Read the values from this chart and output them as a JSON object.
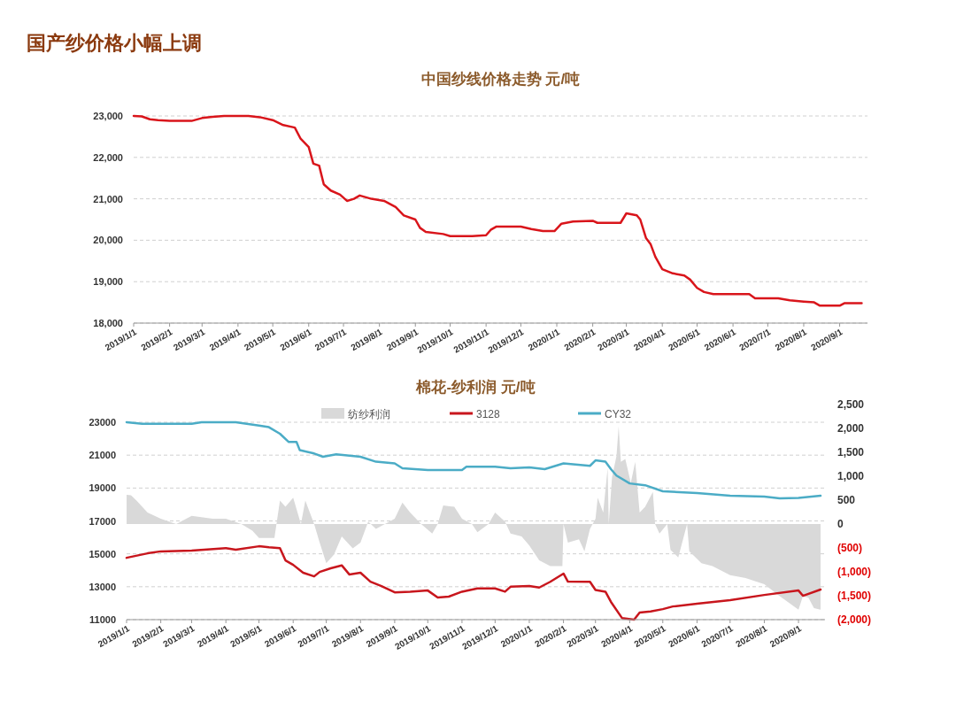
{
  "chart_data": [
    {
      "type": "line",
      "title": "中国纱线价格走势  元/吨",
      "annotations": [
        "国产纱价格小幅上调"
      ],
      "xlim": [
        "2019-01-01",
        "2020-09-25"
      ],
      "xticks": [
        {
          "value": "2019-01-01",
          "label": "2019/1/1"
        },
        {
          "value": "2019-02-01",
          "label": "2019/2/1"
        },
        {
          "value": "2019-03-01",
          "label": "2019/3/1"
        },
        {
          "value": "2019-04-01",
          "label": "2019/4/1"
        },
        {
          "value": "2019-05-01",
          "label": "2019/5/1"
        },
        {
          "value": "2019-06-01",
          "label": "2019/6/1"
        },
        {
          "value": "2019-07-01",
          "label": "2019/7/1"
        },
        {
          "value": "2019-08-01",
          "label": "2019/8/1"
        },
        {
          "value": "2019-09-01",
          "label": "2019/9/1"
        },
        {
          "value": "2019-10-01",
          "label": "2019/10/1"
        },
        {
          "value": "2019-11-01",
          "label": "2019/11/1"
        },
        {
          "value": "2019-12-01",
          "label": "2019/12/1"
        },
        {
          "value": "2020-01-01",
          "label": "2020/1/1"
        },
        {
          "value": "2020-02-01",
          "label": "2020/2/1"
        },
        {
          "value": "2020-03-01",
          "label": "2020/3/1"
        },
        {
          "value": "2020-04-01",
          "label": "2020/4/1"
        },
        {
          "value": "2020-05-01",
          "label": "2020/5/1"
        },
        {
          "value": "2020-06-01",
          "label": "2020/6/1"
        },
        {
          "value": "2020-07-01",
          "label": "2020/7/1"
        },
        {
          "value": "2020-08-01",
          "label": "2020/8/1"
        },
        {
          "value": "2020-09-01",
          "label": "2020/9/1"
        }
      ],
      "ylim": [
        18000,
        23000
      ],
      "yticks": [
        {
          "value": 18000,
          "label": "18,000"
        },
        {
          "value": 19000,
          "label": "19,000"
        },
        {
          "value": 20000,
          "label": "20,000"
        },
        {
          "value": 21000,
          "label": "21,000"
        },
        {
          "value": 22000,
          "label": "22,000"
        },
        {
          "value": 23000,
          "label": "23,000"
        }
      ],
      "grid": "y",
      "legend": false,
      "series": [
        {
          "color": "#d9151b",
          "x": [
            "2019-01-01",
            "2019-01-08",
            "2019-01-15",
            "2019-01-22",
            "2019-02-01",
            "2019-02-20",
            "2019-03-01",
            "2019-03-10",
            "2019-03-20",
            "2019-04-10",
            "2019-04-20",
            "2019-05-01",
            "2019-05-10",
            "2019-05-20",
            "2019-05-25",
            "2019-06-01",
            "2019-06-05",
            "2019-06-10",
            "2019-06-14",
            "2019-06-20",
            "2019-06-28",
            "2019-07-04",
            "2019-07-10",
            "2019-07-15",
            "2019-07-25",
            "2019-08-05",
            "2019-08-15",
            "2019-08-22",
            "2019-09-01",
            "2019-09-05",
            "2019-09-10",
            "2019-09-25",
            "2019-10-01",
            "2019-10-20",
            "2019-11-01",
            "2019-11-05",
            "2019-11-10",
            "2019-12-01",
            "2019-12-10",
            "2019-12-20",
            "2019-12-30",
            "2020-01-05",
            "2020-01-15",
            "2020-02-01",
            "2020-02-05",
            "2020-02-25",
            "2020-03-01",
            "2020-03-10",
            "2020-03-13",
            "2020-03-18",
            "2020-03-22",
            "2020-03-26",
            "2020-04-01",
            "2020-04-10",
            "2020-04-20",
            "2020-04-25",
            "2020-05-01",
            "2020-05-07",
            "2020-05-15",
            "2020-06-15",
            "2020-06-20",
            "2020-07-10",
            "2020-07-20",
            "2020-08-01",
            "2020-08-10",
            "2020-08-15",
            "2020-09-01",
            "2020-09-05",
            "2020-09-20"
          ],
          "values": [
            23000,
            22990,
            22920,
            22900,
            22880,
            22880,
            22950,
            22980,
            23000,
            23000,
            22970,
            22900,
            22780,
            22720,
            22450,
            22250,
            21850,
            21800,
            21350,
            21200,
            21100,
            20950,
            21000,
            21080,
            21000,
            20950,
            20800,
            20600,
            20500,
            20300,
            20200,
            20150,
            20100,
            20100,
            20120,
            20250,
            20330,
            20330,
            20270,
            20220,
            20220,
            20400,
            20450,
            20470,
            20420,
            20420,
            20650,
            20600,
            20500,
            20050,
            19900,
            19600,
            19300,
            19200,
            19150,
            19050,
            18850,
            18750,
            18700,
            18700,
            18600,
            18600,
            18550,
            18520,
            18500,
            18420,
            18420,
            18480,
            18480
          ]
        }
      ]
    },
    {
      "type": "line",
      "title": "棉花-纱利润  元/吨",
      "xlim": [
        "2019-01-01",
        "2020-09-25"
      ],
      "xticks": [
        {
          "value": "2019-01-01",
          "label": "2019/1/1"
        },
        {
          "value": "2019-02-01",
          "label": "2019/2/1"
        },
        {
          "value": "2019-03-01",
          "label": "2019/3/1"
        },
        {
          "value": "2019-04-01",
          "label": "2019/4/1"
        },
        {
          "value": "2019-05-01",
          "label": "2019/5/1"
        },
        {
          "value": "2019-06-01",
          "label": "2019/6/1"
        },
        {
          "value": "2019-07-01",
          "label": "2019/7/1"
        },
        {
          "value": "2019-08-01",
          "label": "2019/8/1"
        },
        {
          "value": "2019-09-01",
          "label": "2019/9/1"
        },
        {
          "value": "2019-10-01",
          "label": "2019/10/1"
        },
        {
          "value": "2019-11-01",
          "label": "2019/11/1"
        },
        {
          "value": "2019-12-01",
          "label": "2019/12/1"
        },
        {
          "value": "2020-01-01",
          "label": "2020/1/1"
        },
        {
          "value": "2020-02-01",
          "label": "2020/2/1"
        },
        {
          "value": "2020-03-01",
          "label": "2020/3/1"
        },
        {
          "value": "2020-04-01",
          "label": "2020/4/1"
        },
        {
          "value": "2020-05-01",
          "label": "2020/5/1"
        },
        {
          "value": "2020-06-01",
          "label": "2020/6/1"
        },
        {
          "value": "2020-07-01",
          "label": "2020/7/1"
        },
        {
          "value": "2020-08-01",
          "label": "2020/8/1"
        },
        {
          "value": "2020-09-01",
          "label": "2020/9/1"
        }
      ],
      "ylim": [
        11000,
        23000
      ],
      "yticks": [
        11000,
        13000,
        15000,
        17000,
        19000,
        21000,
        23000
      ],
      "y2lim": [
        -2000,
        2500
      ],
      "y2ticks": [
        {
          "value": -2000,
          "label": "(2,000)"
        },
        {
          "value": -1500,
          "label": "(1,500)"
        },
        {
          "value": -1000,
          "label": "(1,000)"
        },
        {
          "value": -500,
          "label": "(500)"
        },
        0,
        500,
        {
          "value": 1000,
          "label": "1,000"
        },
        {
          "value": 1500,
          "label": "1,500"
        },
        {
          "value": 2000,
          "label": "2,000"
        },
        {
          "value": 2500,
          "label": "2,500"
        }
      ],
      "grid": "y",
      "legend": "top",
      "series": [
        {
          "name": "纺纱利润",
          "type": "area",
          "axis": "y2",
          "color": "#d9d9d9",
          "x": [
            "2019-01-01",
            "2019-01-05",
            "2019-01-10",
            "2019-01-20",
            "2019-02-01",
            "2019-02-15",
            "2019-03-01",
            "2019-03-20",
            "2019-04-01",
            "2019-04-15",
            "2019-04-25",
            "2019-05-01",
            "2019-05-15",
            "2019-05-20",
            "2019-05-25",
            "2019-06-01",
            "2019-06-08",
            "2019-06-12",
            "2019-06-20",
            "2019-06-25",
            "2019-07-01",
            "2019-07-08",
            "2019-07-15",
            "2019-07-25",
            "2019-08-01",
            "2019-08-08",
            "2019-08-15",
            "2019-09-01",
            "2019-09-08",
            "2019-09-15",
            "2019-09-25",
            "2019-10-05",
            "2019-10-10",
            "2019-10-15",
            "2019-10-25",
            "2019-11-01",
            "2019-11-10",
            "2019-11-15",
            "2019-11-25",
            "2019-12-01",
            "2019-12-10",
            "2019-12-15",
            "2019-12-25",
            "2020-01-01",
            "2020-01-10",
            "2020-01-20",
            "2020-01-31",
            "2020-02-01",
            "2020-02-05",
            "2020-02-15",
            "2020-02-20",
            "2020-02-25",
            "2020-03-01",
            "2020-03-03",
            "2020-03-08",
            "2020-03-12",
            "2020-03-13",
            "2020-03-16",
            "2020-03-20",
            "2020-03-22",
            "2020-03-24",
            "2020-03-28",
            "2020-04-02",
            "2020-04-06",
            "2020-04-10",
            "2020-04-15",
            "2020-04-22",
            "2020-04-24",
            "2020-04-28",
            "2020-05-05",
            "2020-05-08",
            "2020-05-15",
            "2020-05-23",
            "2020-05-25",
            "2020-06-05",
            "2020-06-15",
            "2020-07-01",
            "2020-07-15",
            "2020-08-01",
            "2020-08-15",
            "2020-09-01",
            "2020-09-05",
            "2020-09-10",
            "2020-09-15",
            "2020-09-21"
          ],
          "values": [
            610,
            600,
            490,
            240,
            110,
            0,
            170,
            110,
            110,
            0,
            -140,
            -290,
            -290,
            490,
            360,
            550,
            0,
            490,
            0,
            -390,
            -820,
            -640,
            -260,
            -510,
            -390,
            50,
            -100,
            110,
            450,
            240,
            0,
            -200,
            0,
            390,
            360,
            110,
            0,
            -170,
            0,
            240,
            50,
            -200,
            -260,
            -450,
            -760,
            -880,
            -880,
            0,
            -390,
            -320,
            -570,
            -100,
            110,
            550,
            240,
            1170,
            0,
            980,
            1420,
            2040,
            1300,
            1360,
            860,
            1300,
            240,
            360,
            670,
            0,
            -200,
            0,
            -540,
            -700,
            0,
            -570,
            -820,
            -880,
            -1070,
            -1130,
            -1260,
            -1510,
            -1790,
            -1510,
            -1540,
            -1760,
            -1790
          ]
        },
        {
          "name": "3128",
          "color": "#c8161d",
          "x": [
            "2019-01-01",
            "2019-01-20",
            "2019-02-01",
            "2019-03-01",
            "2019-04-01",
            "2019-04-10",
            "2019-05-01",
            "2019-05-10",
            "2019-05-20",
            "2019-05-25",
            "2019-06-01",
            "2019-06-10",
            "2019-06-20",
            "2019-06-25",
            "2019-07-05",
            "2019-07-15",
            "2019-07-22",
            "2019-08-01",
            "2019-08-10",
            "2019-08-20",
            "2019-09-01",
            "2019-09-15",
            "2019-10-01",
            "2019-10-10",
            "2019-10-20",
            "2019-11-01",
            "2019-11-15",
            "2019-12-01",
            "2019-12-10",
            "2019-12-15",
            "2020-01-01",
            "2020-01-10",
            "2020-01-20",
            "2020-02-01",
            "2020-02-05",
            "2020-02-25",
            "2020-03-01",
            "2020-03-10",
            "2020-03-15",
            "2020-03-25",
            "2020-04-05",
            "2020-04-10",
            "2020-04-20",
            "2020-05-01",
            "2020-05-10",
            "2020-06-01",
            "2020-07-01",
            "2020-08-01",
            "2020-09-01",
            "2020-09-05",
            "2020-09-21"
          ],
          "values": [
            14760,
            15030,
            15150,
            15200,
            15350,
            15250,
            15460,
            15400,
            15350,
            14600,
            14330,
            13850,
            13630,
            13900,
            14120,
            14300,
            13740,
            13850,
            13310,
            13040,
            12660,
            12700,
            12770,
            12340,
            12400,
            12700,
            12900,
            12900,
            12700,
            13000,
            13040,
            12950,
            13300,
            13800,
            13310,
            13300,
            12800,
            12700,
            12080,
            11100,
            11000,
            11430,
            11500,
            11640,
            11800,
            11970,
            12180,
            12500,
            12770,
            12450,
            12830
          ]
        },
        {
          "name": "CY32",
          "color": "#4bacc6",
          "x": [
            "2019-01-01",
            "2019-01-15",
            "2019-03-01",
            "2019-03-10",
            "2019-04-10",
            "2019-05-01",
            "2019-05-10",
            "2019-05-20",
            "2019-05-28",
            "2019-06-04",
            "2019-06-07",
            "2019-06-20",
            "2019-06-28",
            "2019-07-10",
            "2019-08-01",
            "2019-08-15",
            "2019-09-01",
            "2019-09-08",
            "2019-10-01",
            "2019-11-01",
            "2019-11-05",
            "2019-12-01",
            "2019-12-15",
            "2020-01-01",
            "2020-01-15",
            "2020-02-01",
            "2020-02-25",
            "2020-03-01",
            "2020-03-10",
            "2020-03-15",
            "2020-03-20",
            "2020-04-01",
            "2020-04-15",
            "2020-05-01",
            "2020-06-01",
            "2020-07-01",
            "2020-08-01",
            "2020-08-15",
            "2020-09-01",
            "2020-09-21"
          ],
          "values": [
            23000,
            22900,
            22900,
            23000,
            23000,
            22800,
            22700,
            22300,
            21800,
            21800,
            21300,
            21100,
            20900,
            21050,
            20900,
            20600,
            20500,
            20200,
            20100,
            20100,
            20300,
            20300,
            20200,
            20250,
            20150,
            20500,
            20350,
            20680,
            20600,
            20150,
            19760,
            19280,
            19170,
            18800,
            18690,
            18530,
            18480,
            18370,
            18400,
            18530
          ]
        }
      ]
    }
  ]
}
